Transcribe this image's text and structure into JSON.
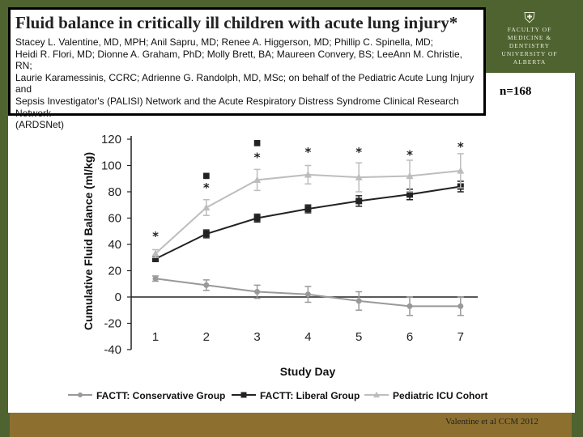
{
  "slide": {
    "title": "Fluid balance in critically ill children with acute lung injury*",
    "authors": "Stacey L. Valentine, MD, MPH; Anil Sapru, MD; Renee A. Higgerson, MD; Phillip C. Spinella, MD;\nHeidi R. Flori, MD; Dionne A. Graham, PhD; Molly Brett, BA; Maureen Convery, BS; LeeAnn M. Christie, RN;\nLaurie Karamessinis, CCRC; Adrienne G. Randolph, MD, MSc; on behalf of the Pediatric Acute Lung Injury and\nSepsis Investigator's (PALISI) Network and the Acute Respiratory Distress Syndrome Clinical Research Network\n(ARDSNet)",
    "n_label": "n=168",
    "citation": "Valentine et al CCM 2012",
    "crest_lines": [
      "FACULTY OF",
      "MEDICINE & DENTISTRY",
      "UNIVERSITY OF ALBERTA"
    ],
    "crest_icon": "shield-crest-icon"
  },
  "colors": {
    "band_green": "#4f6330",
    "band_gold": "#8d7030",
    "conservative": "#999999",
    "liberal": "#222222",
    "picu": "#bdbdbd"
  },
  "chart_data": {
    "type": "line",
    "title": "",
    "xlabel": "Study Day",
    "ylabel": "Cumulative Fluid Balance (ml/kg)",
    "x": [
      1,
      2,
      3,
      4,
      5,
      6,
      7
    ],
    "ylim": [
      -40,
      120
    ],
    "yticks": [
      -40,
      -20,
      0,
      20,
      40,
      60,
      80,
      100,
      120
    ],
    "grid": false,
    "legend_position": "bottom",
    "series": [
      {
        "name": "FACTT: Conservative Group",
        "marker": "circle",
        "color": "#999999",
        "values": [
          14,
          9,
          4,
          2,
          -3,
          -7,
          -7
        ],
        "errors": [
          2,
          4,
          5,
          6,
          7,
          7,
          7
        ]
      },
      {
        "name": "FACTT: Liberal Group",
        "marker": "square",
        "color": "#222222",
        "values": [
          29,
          48,
          60,
          67,
          73,
          78,
          84
        ],
        "errors": [
          2,
          3,
          3,
          3,
          4,
          4,
          4
        ]
      },
      {
        "name": "Pediatric ICU Cohort",
        "marker": "triangle",
        "color": "#bdbdbd",
        "values": [
          33,
          68,
          89,
          93,
          91,
          92,
          96
        ],
        "errors": [
          3,
          6,
          8,
          7,
          11,
          12,
          13
        ]
      }
    ],
    "annotations": [
      {
        "x": 1,
        "y": 48,
        "text": "*"
      },
      {
        "x": 2,
        "y": 85,
        "text": "*"
      },
      {
        "x": 2,
        "y": 93,
        "text": "■"
      },
      {
        "x": 3,
        "y": 108,
        "text": "*"
      },
      {
        "x": 3,
        "y": 118,
        "text": "■"
      },
      {
        "x": 4,
        "y": 112,
        "text": "*"
      },
      {
        "x": 5,
        "y": 112,
        "text": "*"
      },
      {
        "x": 6,
        "y": 110,
        "text": "*"
      },
      {
        "x": 7,
        "y": 116,
        "text": "*"
      }
    ]
  }
}
